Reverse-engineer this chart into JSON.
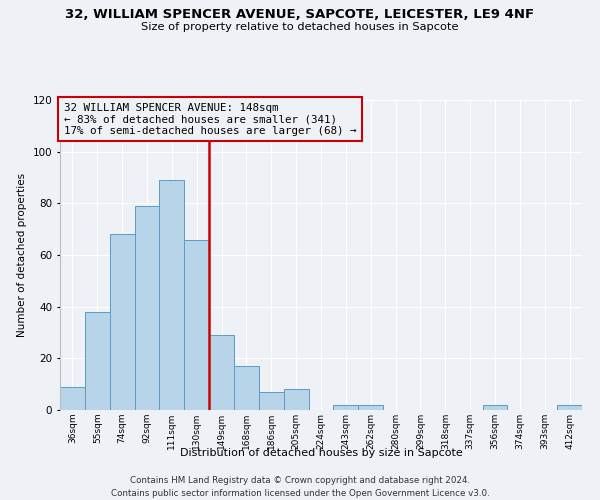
{
  "title": "32, WILLIAM SPENCER AVENUE, SAPCOTE, LEICESTER, LE9 4NF",
  "subtitle": "Size of property relative to detached houses in Sapcote",
  "xlabel": "Distribution of detached houses by size in Sapcote",
  "ylabel": "Number of detached properties",
  "bin_labels": [
    "36sqm",
    "55sqm",
    "74sqm",
    "92sqm",
    "111sqm",
    "130sqm",
    "149sqm",
    "168sqm",
    "186sqm",
    "205sqm",
    "224sqm",
    "243sqm",
    "262sqm",
    "280sqm",
    "299sqm",
    "318sqm",
    "337sqm",
    "356sqm",
    "374sqm",
    "393sqm",
    "412sqm"
  ],
  "bar_heights": [
    9,
    38,
    68,
    79,
    89,
    66,
    29,
    17,
    7,
    8,
    0,
    2,
    2,
    0,
    0,
    0,
    0,
    2,
    0,
    0,
    2
  ],
  "bar_color": "#b8d4e8",
  "bar_edge_color": "#5a9cc8",
  "highlight_line_color": "#cc0000",
  "annotation_line1": "32 WILLIAM SPENCER AVENUE: 148sqm",
  "annotation_line2": "← 83% of detached houses are smaller (341)",
  "annotation_line3": "17% of semi-detached houses are larger (68) →",
  "annotation_box_edge_color": "#cc0000",
  "ylim": [
    0,
    120
  ],
  "yticks": [
    0,
    20,
    40,
    60,
    80,
    100,
    120
  ],
  "background_color": "#eef2f7",
  "grid_color": "#ffffff",
  "footer_line1": "Contains HM Land Registry data © Crown copyright and database right 2024.",
  "footer_line2": "Contains public sector information licensed under the Open Government Licence v3.0."
}
